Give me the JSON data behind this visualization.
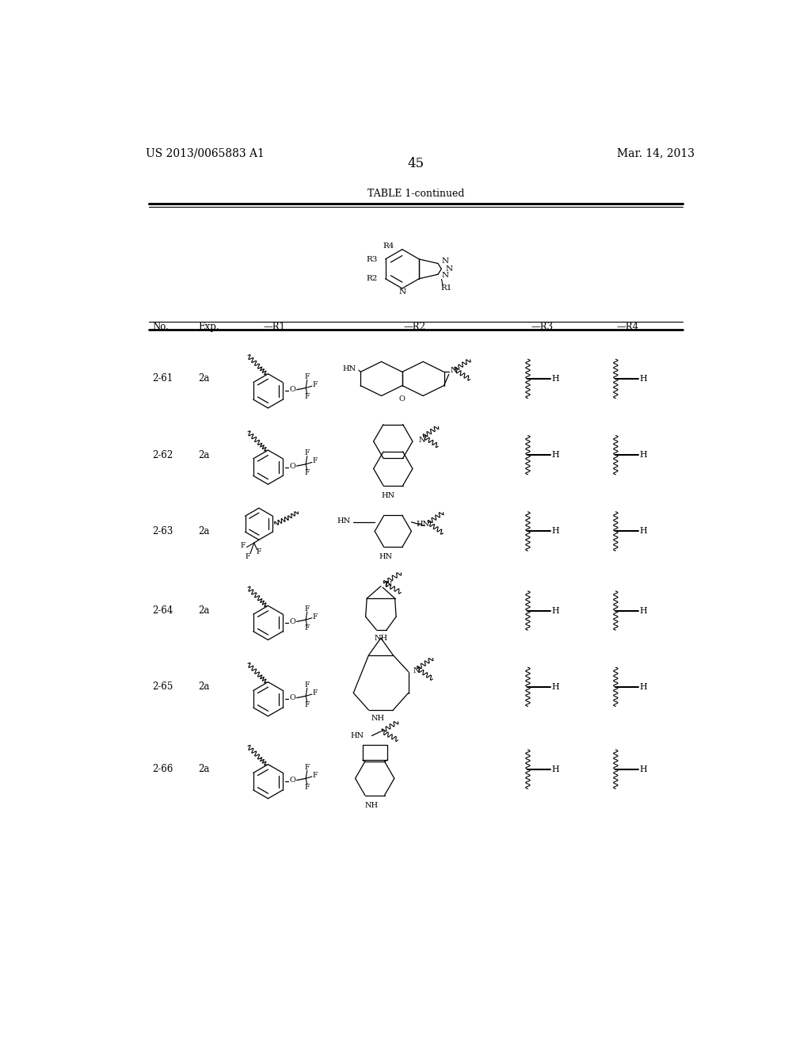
{
  "background_color": "#ffffff",
  "page_number": "45",
  "left_header": "US 2013/0065883 A1",
  "right_header": "Mar. 14, 2013",
  "table_title": "TABLE 1-continued",
  "col_headers": [
    "No.",
    "Exp.",
    "—R1",
    "—R2",
    "—R3",
    "—R4"
  ],
  "rows": [
    {
      "no": "2-61",
      "exp": "2a"
    },
    {
      "no": "2-62",
      "exp": "2a"
    },
    {
      "no": "2-63",
      "exp": "2a"
    },
    {
      "no": "2-64",
      "exp": "2a"
    },
    {
      "no": "2-65",
      "exp": "2a"
    },
    {
      "no": "2-66",
      "exp": "2a"
    }
  ]
}
